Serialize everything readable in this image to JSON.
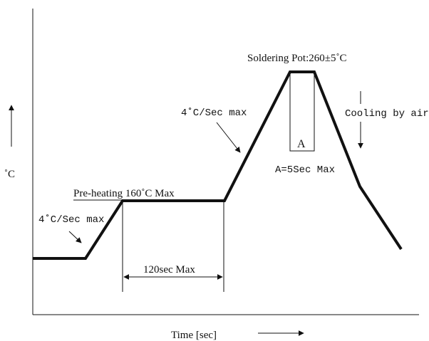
{
  "diagram": {
    "labels": {
      "soldering_pot": "Soldering Pot:260±5˚C",
      "cooling": "Cooling by air",
      "ramp_up_top": "4˚C/Sec max",
      "ramp_up_bottom": "4˚C/Sec max",
      "preheating": "Pre-heating 160˚C Max",
      "dwell_box": "A",
      "dwell": "A=5Sec Max",
      "preheat_time": "120sec Max",
      "y_axis": "˚C",
      "x_axis": "Time [sec]"
    },
    "colors": {
      "ink": "#111111",
      "background": "#ffffff"
    }
  }
}
